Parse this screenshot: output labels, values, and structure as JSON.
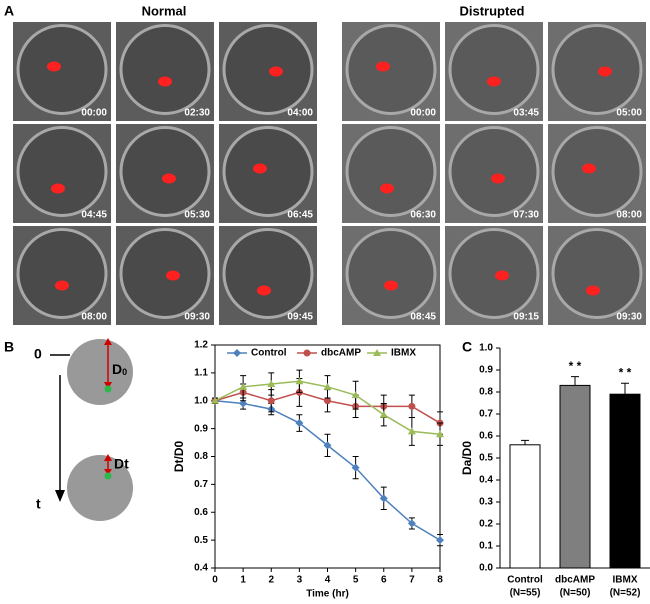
{
  "panel_a": {
    "label": "A",
    "groups": [
      {
        "title": "Normal",
        "timestamps": [
          "00:00",
          "02:30",
          "04:00",
          "04:45",
          "05:30",
          "06:45",
          "08:00",
          "09:30",
          "09:45"
        ]
      },
      {
        "title": "Distrupted",
        "timestamps": [
          "00:00",
          "03:45",
          "05:00",
          "06:30",
          "07:30",
          "08:00",
          "08:45",
          "09:15",
          "09:30"
        ]
      }
    ]
  },
  "panel_b": {
    "label": "B",
    "diagram": {
      "time_start": "0",
      "time_end": "t",
      "label_start": "D",
      "label_start_sub": "0",
      "label_end": "Dt"
    }
  },
  "panel_c": {
    "label": "C"
  },
  "chart_data": [
    {
      "type": "line",
      "x_label": "Time (hr)",
      "y_label": "Dt/D0",
      "x": [
        0,
        1,
        2,
        3,
        4,
        5,
        6,
        7,
        8
      ],
      "xlim": [
        0,
        8
      ],
      "xticks": [
        0,
        1,
        2,
        3,
        4,
        5,
        6,
        7,
        8
      ],
      "ylim": [
        0.4,
        1.2
      ],
      "yticks": [
        0.4,
        0.5,
        0.6,
        0.7,
        0.8,
        0.9,
        {
          "value": 1,
          "label": "1.0"
        },
        1.1,
        1.2
      ],
      "legend": "top",
      "series": [
        {
          "name": "Control",
          "color": "#4f81bd",
          "marker": "diamond",
          "values": [
            1.0,
            0.99,
            0.97,
            0.92,
            0.84,
            0.76,
            0.65,
            0.56,
            0.5
          ],
          "errors": [
            0.01,
            0.02,
            0.02,
            0.03,
            0.04,
            0.04,
            0.04,
            0.02,
            0.02
          ]
        },
        {
          "name": "dbcAMP",
          "color": "#c0504d",
          "marker": "circle",
          "values": [
            1.0,
            1.03,
            1.0,
            1.03,
            1.0,
            0.98,
            0.98,
            0.98,
            0.92
          ],
          "errors": [
            0.01,
            0.03,
            0.04,
            0.05,
            0.04,
            0.04,
            0.04,
            0.04,
            0.04
          ]
        },
        {
          "name": "IBMX",
          "color": "#9bbb59",
          "marker": "triangle",
          "values": [
            1.0,
            1.05,
            1.06,
            1.07,
            1.05,
            1.02,
            0.95,
            0.89,
            0.88
          ],
          "errors": [
            0.01,
            0.04,
            0.04,
            0.04,
            0.04,
            0.05,
            0.04,
            0.05,
            0.04
          ]
        }
      ]
    },
    {
      "type": "bar",
      "y_label": "Da/D0",
      "categories": [
        "Control",
        "dbcAMP",
        "IBMX"
      ],
      "sample_sizes": [
        "(N=55)",
        "(N=50)",
        "(N=52)"
      ],
      "values": [
        0.56,
        0.83,
        0.79
      ],
      "errors": [
        0.02,
        0.04,
        0.05
      ],
      "colors": [
        "#ffffff",
        "#7f7f7f",
        "#000000"
      ],
      "value_annotations": [
        null,
        "* *",
        "* *"
      ],
      "ylim": [
        0,
        1
      ],
      "yticks": [
        {
          "value": 0,
          "label": "0.0"
        },
        0.1,
        0.2,
        0.3,
        0.4,
        0.5,
        0.6,
        0.7,
        0.8,
        0.9,
        {
          "value": 1,
          "label": "1.0"
        }
      ]
    }
  ]
}
